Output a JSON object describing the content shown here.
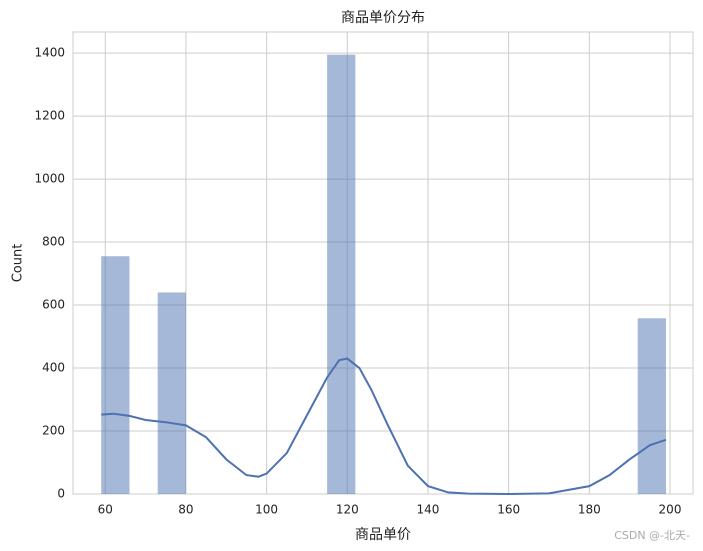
{
  "chart_data": {
    "type": "histogram",
    "title": "商品单价分布",
    "x_label": "商品单价",
    "y_label": "Count",
    "bins": [
      59,
      66,
      73,
      80,
      87,
      94,
      101,
      108,
      115,
      122,
      129,
      136,
      143,
      150,
      157,
      164,
      171,
      178,
      185,
      192,
      199
    ],
    "counts": [
      755,
      0,
      640,
      0,
      0,
      0,
      0,
      0,
      1395,
      0,
      0,
      0,
      0,
      0,
      0,
      0,
      0,
      0,
      0,
      558
    ],
    "color": "#4c72b0",
    "kde": {
      "x": [
        59,
        62,
        66,
        70,
        75,
        80,
        85,
        90,
        95,
        98,
        100,
        105,
        110,
        115,
        118,
        120,
        123,
        126,
        130,
        135,
        140,
        145,
        150,
        160,
        170,
        180,
        185,
        190,
        195,
        199
      ],
      "y": [
        252,
        255,
        248,
        235,
        228,
        218,
        180,
        110,
        60,
        55,
        65,
        130,
        250,
        370,
        425,
        430,
        400,
        330,
        220,
        90,
        25,
        5,
        1,
        0,
        2,
        25,
        60,
        110,
        155,
        172
      ]
    },
    "xlim": [
      52,
      205.7
    ],
    "ylim": [
      0,
      1467
    ],
    "xticks": [
      60,
      80,
      100,
      120,
      140,
      160,
      180,
      200
    ],
    "yticks": [
      0,
      200,
      400,
      600,
      800,
      1000,
      1200,
      1400
    ],
    "grid": true,
    "watermark": "CSDN @-北天-"
  }
}
